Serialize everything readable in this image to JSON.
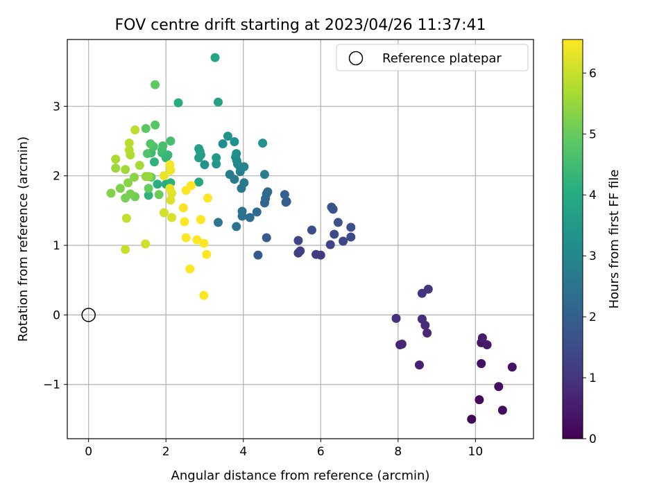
{
  "chart_data": {
    "type": "scatter",
    "title": "FOV centre drift starting at 2023/04/26 11:37:41",
    "xlabel": "Angular distance from reference (arcmin)",
    "ylabel": "Rotation from reference (arcmin)",
    "xlim": [
      -0.55,
      11.5
    ],
    "ylim": [
      -1.78,
      3.96
    ],
    "xticks": [
      0,
      2,
      4,
      6,
      8,
      10
    ],
    "yticks": [
      -1,
      0,
      1,
      2,
      3
    ],
    "xtick_labels": [
      "0",
      "2",
      "4",
      "6",
      "8",
      "10"
    ],
    "ytick_labels": [
      "−1",
      "0",
      "1",
      "2",
      "3"
    ],
    "grid": true,
    "legend": {
      "placement": "top-right",
      "entries": [
        "Reference platepar"
      ]
    },
    "colorbar": {
      "label": "Hours from first FF file",
      "colormap": "viridis",
      "range": [
        0,
        6.55
      ],
      "ticks": [
        0,
        1,
        2,
        3,
        4,
        5,
        6
      ],
      "tick_labels": [
        "0",
        "1",
        "2",
        "3",
        "4",
        "5",
        "6"
      ]
    },
    "reference_point": {
      "x": 0,
      "y": 0,
      "name": "Reference platepar"
    },
    "series": [
      {
        "points": [
          {
            "x": 9.9,
            "y": -1.5,
            "h": 0.1
          },
          {
            "x": 10.1,
            "y": -1.22,
            "h": 0.15
          },
          {
            "x": 10.7,
            "y": -1.37,
            "h": 0.2
          },
          {
            "x": 10.6,
            "y": -1.03,
            "h": 0.25
          },
          {
            "x": 10.15,
            "y": -0.7,
            "h": 0.3
          },
          {
            "x": 10.95,
            "y": -0.75,
            "h": 0.35
          },
          {
            "x": 10.15,
            "y": -0.4,
            "h": 0.4
          },
          {
            "x": 10.3,
            "y": -0.43,
            "h": 0.45
          },
          {
            "x": 10.18,
            "y": -0.33,
            "h": 0.5
          },
          {
            "x": 8.55,
            "y": -0.72,
            "h": 0.6
          },
          {
            "x": 8.05,
            "y": -0.43,
            "h": 0.65
          },
          {
            "x": 8.1,
            "y": -0.42,
            "h": 0.7
          },
          {
            "x": 8.75,
            "y": -0.26,
            "h": 0.75
          },
          {
            "x": 8.7,
            "y": -0.15,
            "h": 0.8
          },
          {
            "x": 8.62,
            "y": -0.06,
            "h": 0.85
          },
          {
            "x": 7.95,
            "y": -0.05,
            "h": 0.9
          },
          {
            "x": 8.62,
            "y": 0.31,
            "h": 0.95
          },
          {
            "x": 8.78,
            "y": 0.37,
            "h": 1.0
          },
          {
            "x": 6.0,
            "y": 0.86,
            "h": 1.1
          },
          {
            "x": 5.88,
            "y": 0.87,
            "h": 1.15
          },
          {
            "x": 5.42,
            "y": 0.89,
            "h": 1.2
          },
          {
            "x": 5.47,
            "y": 0.92,
            "h": 1.25
          },
          {
            "x": 6.25,
            "y": 1.01,
            "h": 1.3
          },
          {
            "x": 5.42,
            "y": 1.07,
            "h": 1.35
          },
          {
            "x": 6.58,
            "y": 1.06,
            "h": 1.4
          },
          {
            "x": 6.78,
            "y": 1.12,
            "h": 1.45
          },
          {
            "x": 6.35,
            "y": 1.16,
            "h": 1.5
          },
          {
            "x": 5.77,
            "y": 1.22,
            "h": 1.55
          },
          {
            "x": 6.78,
            "y": 1.26,
            "h": 1.6
          },
          {
            "x": 6.45,
            "y": 1.33,
            "h": 1.65
          },
          {
            "x": 6.32,
            "y": 1.52,
            "h": 1.7
          },
          {
            "x": 6.28,
            "y": 1.55,
            "h": 1.75
          },
          {
            "x": 4.38,
            "y": 0.86,
            "h": 1.85
          },
          {
            "x": 4.6,
            "y": 1.11,
            "h": 1.9
          },
          {
            "x": 5.1,
            "y": 1.62,
            "h": 1.95
          },
          {
            "x": 5.12,
            "y": 1.63,
            "h": 2.0
          },
          {
            "x": 5.07,
            "y": 1.73,
            "h": 2.05
          },
          {
            "x": 4.55,
            "y": 1.61,
            "h": 2.1
          },
          {
            "x": 4.57,
            "y": 1.67,
            "h": 2.15
          },
          {
            "x": 4.6,
            "y": 1.74,
            "h": 2.2
          },
          {
            "x": 4.63,
            "y": 1.77,
            "h": 2.25
          },
          {
            "x": 4.35,
            "y": 1.48,
            "h": 2.3
          },
          {
            "x": 4.17,
            "y": 1.4,
            "h": 2.35
          },
          {
            "x": 3.97,
            "y": 1.42,
            "h": 2.4
          },
          {
            "x": 3.97,
            "y": 1.49,
            "h": 2.45
          },
          {
            "x": 3.82,
            "y": 1.27,
            "h": 2.5
          },
          {
            "x": 3.35,
            "y": 1.33,
            "h": 2.55
          },
          {
            "x": 3.95,
            "y": 1.82,
            "h": 2.6
          },
          {
            "x": 4.02,
            "y": 1.9,
            "h": 2.65
          },
          {
            "x": 3.77,
            "y": 1.95,
            "h": 2.7
          },
          {
            "x": 3.65,
            "y": 2.02,
            "h": 2.75
          },
          {
            "x": 4.55,
            "y": 2.02,
            "h": 2.8
          },
          {
            "x": 3.92,
            "y": 2.06,
            "h": 2.85
          },
          {
            "x": 3.92,
            "y": 2.12,
            "h": 2.9
          },
          {
            "x": 4.02,
            "y": 2.13,
            "h": 2.95
          },
          {
            "x": 3.85,
            "y": 2.17,
            "h": 3.0
          },
          {
            "x": 3.83,
            "y": 2.22,
            "h": 3.05
          },
          {
            "x": 3.8,
            "y": 2.27,
            "h": 3.1
          },
          {
            "x": 3.82,
            "y": 2.32,
            "h": 3.15
          },
          {
            "x": 3.47,
            "y": 2.46,
            "h": 3.2
          },
          {
            "x": 3.77,
            "y": 2.49,
            "h": 3.25
          },
          {
            "x": 4.5,
            "y": 2.47,
            "h": 3.3
          },
          {
            "x": 3.6,
            "y": 2.57,
            "h": 3.35
          },
          {
            "x": 3.0,
            "y": 2.16,
            "h": 3.4
          },
          {
            "x": 3.3,
            "y": 2.17,
            "h": 3.45
          },
          {
            "x": 3.3,
            "y": 2.26,
            "h": 3.5
          },
          {
            "x": 2.9,
            "y": 2.3,
            "h": 3.55
          },
          {
            "x": 2.85,
            "y": 2.26,
            "h": 3.6
          },
          {
            "x": 2.88,
            "y": 2.35,
            "h": 3.65
          },
          {
            "x": 2.85,
            "y": 2.39,
            "h": 3.7
          },
          {
            "x": 3.35,
            "y": 3.06,
            "h": 3.75
          },
          {
            "x": 3.27,
            "y": 3.7,
            "h": 3.85
          },
          {
            "x": 2.85,
            "y": 1.91,
            "h": 3.9
          },
          {
            "x": 2.32,
            "y": 3.05,
            "h": 4.0
          },
          {
            "x": 2.0,
            "y": 1.88,
            "h": 4.05
          },
          {
            "x": 1.78,
            "y": 1.88,
            "h": 4.1
          },
          {
            "x": 2.12,
            "y": 1.9,
            "h": 4.15
          },
          {
            "x": 1.55,
            "y": 1.72,
            "h": 4.2
          },
          {
            "x": 1.7,
            "y": 2.2,
            "h": 4.25
          },
          {
            "x": 2.0,
            "y": 2.26,
            "h": 4.3
          },
          {
            "x": 2.05,
            "y": 2.3,
            "h": 4.35
          },
          {
            "x": 1.9,
            "y": 2.33,
            "h": 4.4
          },
          {
            "x": 1.62,
            "y": 2.33,
            "h": 4.45
          },
          {
            "x": 1.9,
            "y": 2.37,
            "h": 4.5
          },
          {
            "x": 2.12,
            "y": 2.5,
            "h": 4.55
          },
          {
            "x": 1.92,
            "y": 2.43,
            "h": 4.6
          },
          {
            "x": 1.68,
            "y": 2.42,
            "h": 4.65
          },
          {
            "x": 1.52,
            "y": 2.32,
            "h": 4.7
          },
          {
            "x": 1.6,
            "y": 2.46,
            "h": 4.75
          },
          {
            "x": 1.72,
            "y": 2.73,
            "h": 4.8
          },
          {
            "x": 1.48,
            "y": 2.68,
            "h": 4.85
          },
          {
            "x": 1.72,
            "y": 3.31,
            "h": 4.9
          },
          {
            "x": 1.62,
            "y": 1.98,
            "h": 4.95
          },
          {
            "x": 1.55,
            "y": 1.82,
            "h": 5.0
          },
          {
            "x": 1.82,
            "y": 1.73,
            "h": 5.05
          },
          {
            "x": 1.2,
            "y": 1.7,
            "h": 5.1
          },
          {
            "x": 0.95,
            "y": 1.68,
            "h": 5.15
          },
          {
            "x": 1.08,
            "y": 1.74,
            "h": 5.2
          },
          {
            "x": 0.82,
            "y": 1.82,
            "h": 5.25
          },
          {
            "x": 0.58,
            "y": 1.75,
            "h": 5.3
          },
          {
            "x": 1.02,
            "y": 1.9,
            "h": 5.35
          },
          {
            "x": 1.18,
            "y": 1.98,
            "h": 5.4
          },
          {
            "x": 1.48,
            "y": 1.99,
            "h": 5.45
          },
          {
            "x": 1.55,
            "y": 1.99,
            "h": 5.5
          },
          {
            "x": 0.7,
            "y": 2.11,
            "h": 5.55
          },
          {
            "x": 0.95,
            "y": 2.09,
            "h": 5.6
          },
          {
            "x": 1.32,
            "y": 2.15,
            "h": 5.65
          },
          {
            "x": 0.7,
            "y": 2.24,
            "h": 5.7
          },
          {
            "x": 1.08,
            "y": 2.3,
            "h": 5.75
          },
          {
            "x": 1.05,
            "y": 2.37,
            "h": 5.8
          },
          {
            "x": 1.05,
            "y": 2.47,
            "h": 5.85
          },
          {
            "x": 1.2,
            "y": 2.66,
            "h": 5.9
          },
          {
            "x": 0.98,
            "y": 1.39,
            "h": 5.95
          },
          {
            "x": 0.95,
            "y": 0.94,
            "h": 6.0
          },
          {
            "x": 1.47,
            "y": 1.02,
            "h": 6.05
          },
          {
            "x": 1.95,
            "y": 1.47,
            "h": 6.1
          },
          {
            "x": 2.15,
            "y": 1.4,
            "h": 6.15
          },
          {
            "x": 2.12,
            "y": 1.65,
            "h": 6.2
          },
          {
            "x": 2.15,
            "y": 1.75,
            "h": 6.25
          },
          {
            "x": 2.1,
            "y": 1.82,
            "h": 6.3
          },
          {
            "x": 1.95,
            "y": 2.0,
            "h": 6.35
          },
          {
            "x": 2.12,
            "y": 2.08,
            "h": 6.4
          },
          {
            "x": 2.1,
            "y": 2.16,
            "h": 6.45
          },
          {
            "x": 2.45,
            "y": 1.54,
            "h": 6.5
          },
          {
            "x": 2.48,
            "y": 1.34,
            "h": 6.52
          },
          {
            "x": 2.52,
            "y": 1.11,
            "h": 6.54
          },
          {
            "x": 2.8,
            "y": 1.08,
            "h": 6.55
          },
          {
            "x": 2.9,
            "y": 1.37,
            "h": 6.55
          },
          {
            "x": 2.98,
            "y": 1.03,
            "h": 6.55
          },
          {
            "x": 3.05,
            "y": 0.87,
            "h": 6.55
          },
          {
            "x": 2.62,
            "y": 0.66,
            "h": 6.55
          },
          {
            "x": 2.98,
            "y": 0.28,
            "h": 6.55
          },
          {
            "x": 3.08,
            "y": 1.68,
            "h": 6.55
          },
          {
            "x": 2.52,
            "y": 1.79,
            "h": 6.55
          },
          {
            "x": 2.65,
            "y": 1.86,
            "h": 6.55
          }
        ]
      }
    ]
  }
}
